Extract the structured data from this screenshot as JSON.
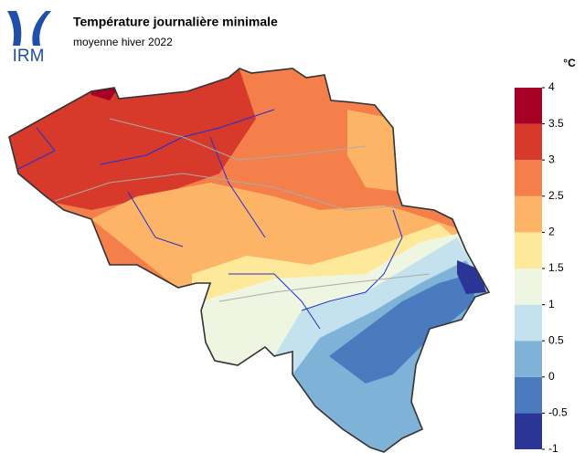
{
  "header": {
    "logo": "IRM",
    "title": "Température journalière minimale",
    "subtitle": "moyenne hiver 2022"
  },
  "legend": {
    "unit": "°C",
    "ticks": [
      -1,
      -0.5,
      0,
      0.5,
      1,
      1.5,
      2,
      2.5,
      3,
      3.5,
      4
    ],
    "colors": [
      "#2b3596",
      "#4a7bbf",
      "#7fb2d7",
      "#c3e2ee",
      "#eef6e2",
      "#fee99a",
      "#fdb466",
      "#f47f4a",
      "#d73a2b",
      "#a50026"
    ]
  }
}
